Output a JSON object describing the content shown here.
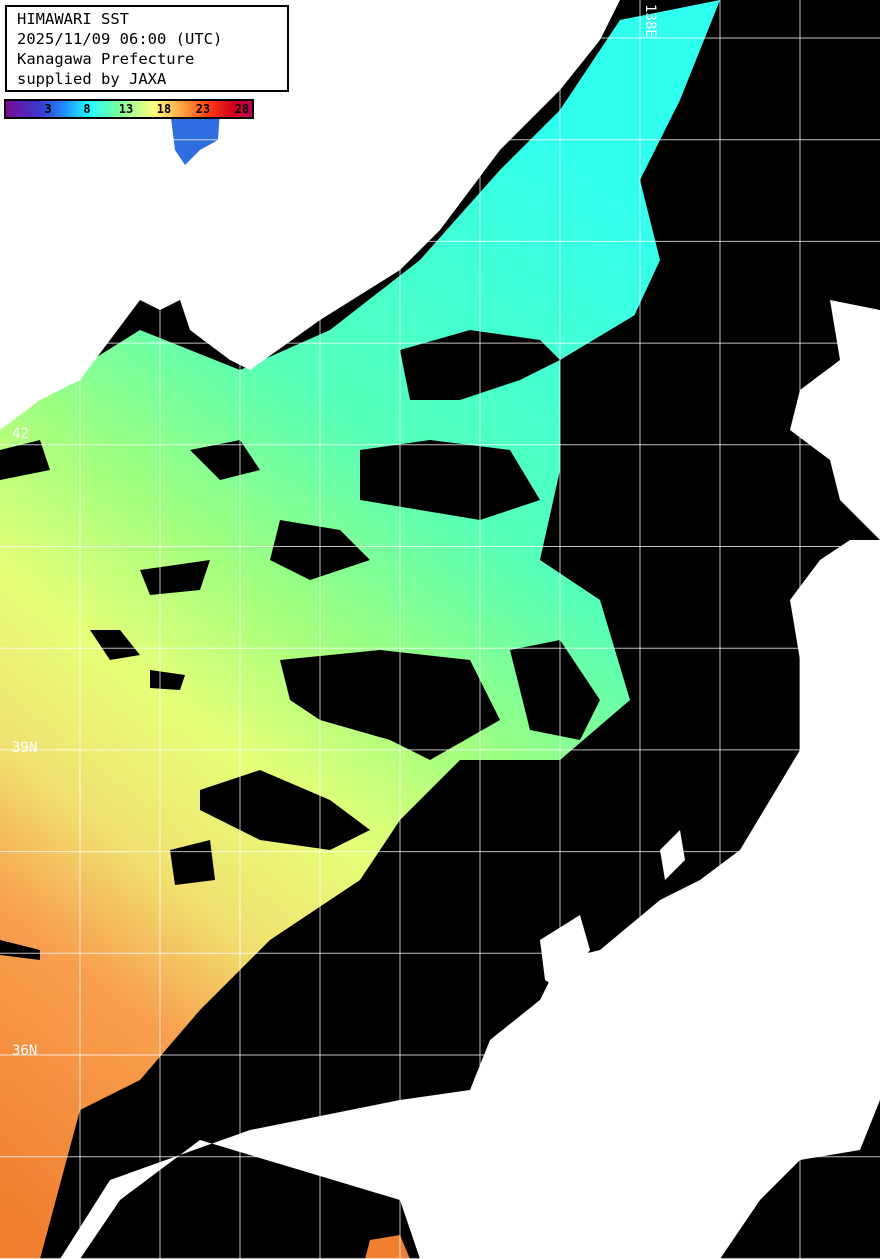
{
  "title": {
    "line1": "HIMAWARI SST",
    "line2": "2025/11/09 06:00 (UTC)",
    "line3": "Kanagawa Prefecture",
    "line4": "supplied by JAXA"
  },
  "colorbar": {
    "ticks": [
      "3",
      "8",
      "13",
      "18",
      "23",
      "28"
    ],
    "colors": [
      "#7a0a96",
      "#3a3ad0",
      "#1e90ff",
      "#22ffff",
      "#7dff9a",
      "#ffff80",
      "#ffa040",
      "#ff4010",
      "#d0001a",
      "#c0005a"
    ]
  },
  "grid_labels": {
    "lon": "138E",
    "lat_42": "42",
    "lat_39": "39N",
    "lat_36": "36N"
  },
  "colors": {
    "cloud": "#000000",
    "land": "#ffffff",
    "grid": "#ffffff"
  }
}
